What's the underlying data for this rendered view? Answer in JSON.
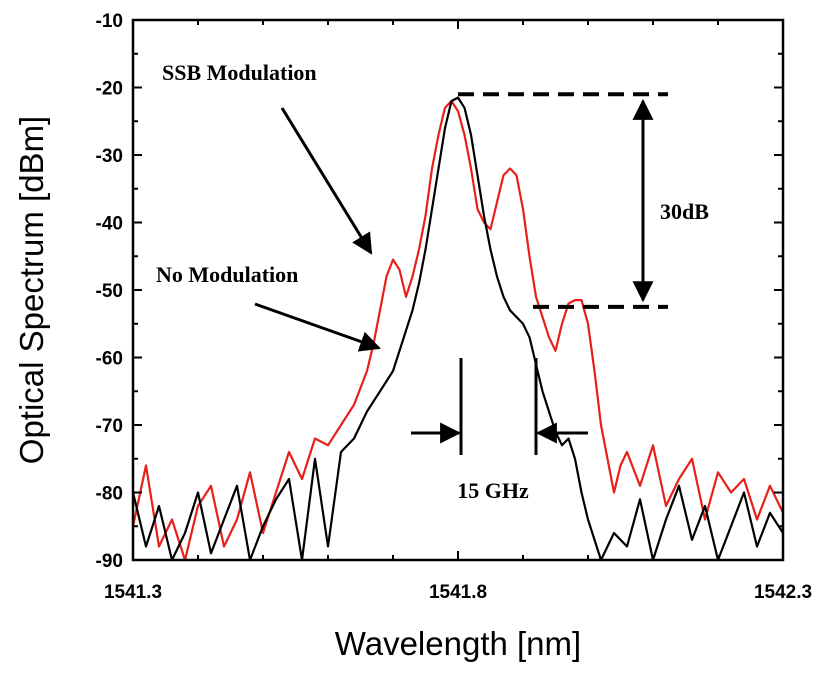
{
  "chart_data": {
    "type": "line",
    "xlabel": "Wavelength [nm]",
    "ylabel": "Optical Spectrum [dBm]",
    "xlim": [
      1541.3,
      1542.3
    ],
    "ylim": [
      -90,
      -10
    ],
    "xticks": [
      1541.3,
      1541.8,
      1542.3
    ],
    "xtick_labels": [
      "1541.3",
      "1541.8",
      "1542.3"
    ],
    "yticks": [
      -90,
      -80,
      -70,
      -60,
      -50,
      -40,
      -30,
      -20,
      -10
    ],
    "ytick_labels": [
      "-90",
      "-80",
      "-70",
      "-60",
      "-50",
      "-40",
      "-30",
      "-20",
      "-10"
    ],
    "grid": false,
    "legend": "none",
    "series": [
      {
        "name": "SSB Modulation",
        "color": "#e8201a",
        "x": [
          1541.3,
          1541.32,
          1541.34,
          1541.36,
          1541.38,
          1541.4,
          1541.42,
          1541.44,
          1541.46,
          1541.48,
          1541.5,
          1541.52,
          1541.54,
          1541.56,
          1541.58,
          1541.6,
          1541.62,
          1541.64,
          1541.66,
          1541.67,
          1541.68,
          1541.69,
          1541.7,
          1541.71,
          1541.72,
          1541.73,
          1541.74,
          1541.75,
          1541.76,
          1541.77,
          1541.78,
          1541.79,
          1541.8,
          1541.81,
          1541.82,
          1541.83,
          1541.84,
          1541.85,
          1541.86,
          1541.87,
          1541.88,
          1541.89,
          1541.9,
          1541.91,
          1541.92,
          1541.93,
          1541.94,
          1541.95,
          1541.96,
          1541.97,
          1541.98,
          1541.99,
          1542.0,
          1542.01,
          1542.02,
          1542.03,
          1542.04,
          1542.05,
          1542.06,
          1542.08,
          1542.1,
          1542.12,
          1542.14,
          1542.16,
          1542.18,
          1542.2,
          1542.22,
          1542.24,
          1542.26,
          1542.28,
          1542.3
        ],
        "y": [
          -85,
          -76,
          -88,
          -84,
          -90,
          -82,
          -79,
          -88,
          -84,
          -77,
          -86,
          -80,
          -74,
          -78,
          -72,
          -73,
          -70,
          -67,
          -62,
          -58,
          -53,
          -48,
          -45.5,
          -47,
          -51,
          -48,
          -44,
          -39,
          -32,
          -27,
          -23,
          -22,
          -23.5,
          -27,
          -32,
          -38,
          -40,
          -41,
          -37,
          -33,
          -32,
          -33,
          -38,
          -45,
          -51,
          -54,
          -57,
          -59,
          -55,
          -52,
          -51.5,
          -51.5,
          -55,
          -62,
          -70,
          -75,
          -80,
          -76,
          -74,
          -79,
          -73,
          -82,
          -78,
          -75,
          -84,
          -77,
          -80,
          -78,
          -84,
          -79,
          -83
        ]
      },
      {
        "name": "No Modulation",
        "color": "#000000",
        "x": [
          1541.3,
          1541.32,
          1541.34,
          1541.36,
          1541.38,
          1541.4,
          1541.42,
          1541.44,
          1541.46,
          1541.48,
          1541.5,
          1541.52,
          1541.54,
          1541.56,
          1541.58,
          1541.6,
          1541.62,
          1541.64,
          1541.66,
          1541.68,
          1541.7,
          1541.71,
          1541.72,
          1541.73,
          1541.74,
          1541.75,
          1541.76,
          1541.77,
          1541.78,
          1541.79,
          1541.8,
          1541.81,
          1541.82,
          1541.83,
          1541.84,
          1541.85,
          1541.86,
          1541.87,
          1541.88,
          1541.89,
          1541.9,
          1541.91,
          1541.92,
          1541.93,
          1541.94,
          1541.95,
          1541.96,
          1541.97,
          1541.98,
          1541.99,
          1542.0,
          1542.02,
          1542.04,
          1542.06,
          1542.08,
          1542.1,
          1542.12,
          1542.14,
          1542.16,
          1542.18,
          1542.2,
          1542.22,
          1542.24,
          1542.26,
          1542.28,
          1542.3
        ],
        "y": [
          -80,
          -88,
          -82,
          -90,
          -86,
          -80,
          -89,
          -84,
          -79,
          -90,
          -85,
          -81,
          -78,
          -90,
          -75,
          -88,
          -74,
          -72,
          -68,
          -65,
          -62,
          -59,
          -56,
          -53,
          -49,
          -44,
          -38,
          -32,
          -26,
          -22,
          -21.5,
          -23,
          -27,
          -33,
          -39,
          -44,
          -48,
          -51,
          -53,
          -54,
          -55,
          -57,
          -61,
          -65,
          -68,
          -71,
          -73,
          -72,
          -75,
          -80,
          -84,
          -90,
          -86,
          -88,
          -81,
          -90,
          -84,
          -79,
          -87,
          -82,
          -90,
          -85,
          -80,
          -88,
          -83,
          -86
        ]
      }
    ],
    "annotations": [
      {
        "text": "SSB Modulation"
      },
      {
        "text": "No Modulation"
      },
      {
        "text": "30dB"
      },
      {
        "text": "15 GHz"
      }
    ]
  }
}
